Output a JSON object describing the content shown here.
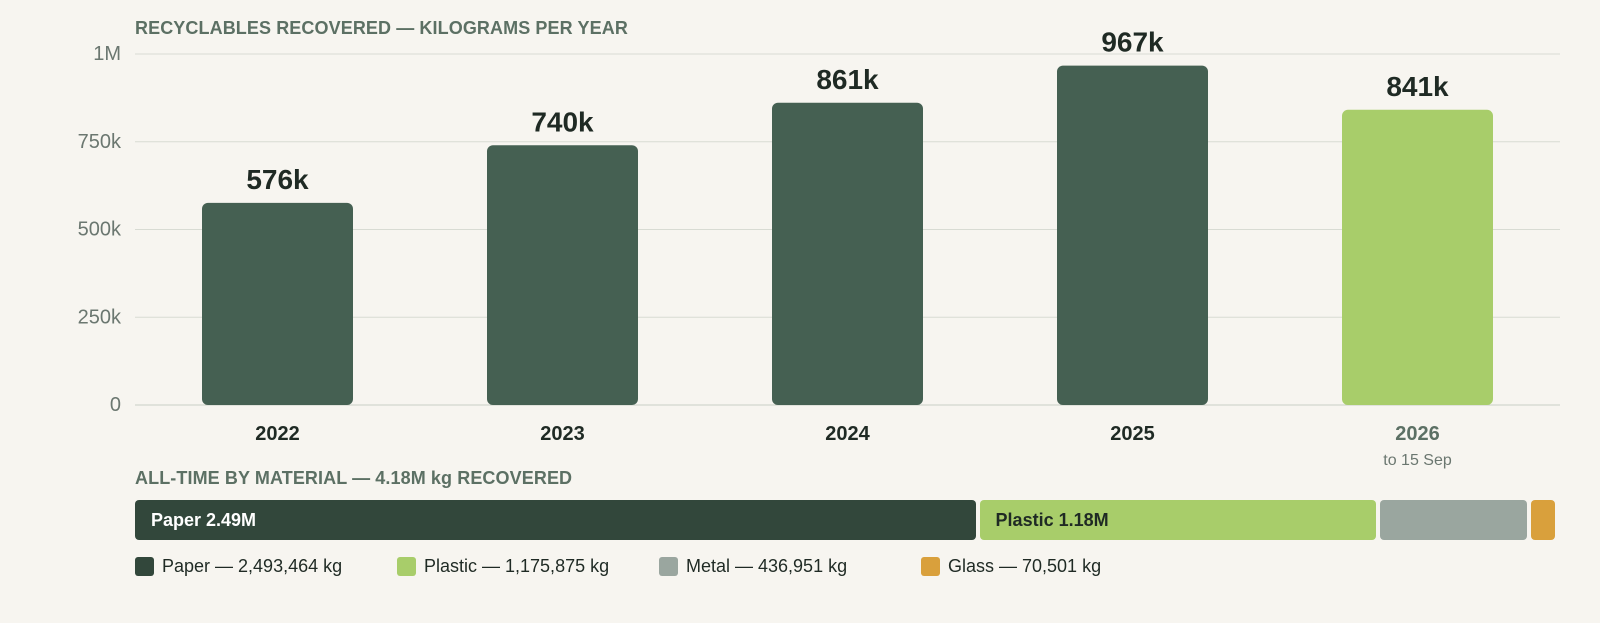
{
  "chart_data": [
    {
      "type": "bar",
      "title": "RECYCLABLES RECOVERED — KILOGRAMS PER YEAR",
      "xlabel": "",
      "ylabel": "",
      "categories": [
        "2022",
        "2023",
        "2024",
        "2025",
        "2026"
      ],
      "category_notes": [
        "",
        "",
        "",
        "",
        "to 15 Sep"
      ],
      "values": [
        576000,
        740000,
        861000,
        967000,
        841000
      ],
      "value_labels": [
        "576k",
        "740k",
        "861k",
        "967k",
        "841k"
      ],
      "ylim": [
        0,
        1000000
      ],
      "yticks": [
        0,
        250000,
        500000,
        750000,
        1000000
      ],
      "ytick_labels": [
        "0",
        "250k",
        "500k",
        "750k",
        "1M"
      ],
      "grid": true,
      "colors": {
        "bar": "#456052",
        "partial_year_bar": "#a8cd6a"
      },
      "highlight_index": 4
    },
    {
      "type": "bar",
      "title": "ALL-TIME BY MATERIAL — 4.18M kg RECOVERED",
      "stacked": true,
      "orientation": "horizontal",
      "segments": [
        {
          "name": "Paper",
          "value": 2493464,
          "bar_label": "Paper 2.49M",
          "legend": "Paper — 2,493,464 kg",
          "color": "#32473b",
          "text_color": "#ffffff"
        },
        {
          "name": "Plastic",
          "value": 1175875,
          "bar_label": "Plastic 1.18M",
          "legend": "Plastic — 1,175,875 kg",
          "color": "#a8cd6a",
          "text_color": "#1f2a24"
        },
        {
          "name": "Metal",
          "value": 436951,
          "bar_label": "",
          "legend": "Metal — 436,951 kg",
          "color": "#9aa69f",
          "text_color": "#1f2a24"
        },
        {
          "name": "Glass",
          "value": 70501,
          "bar_label": "",
          "legend": "Glass — 70,501 kg",
          "color": "#d9a03c",
          "text_color": "#1f2a24"
        }
      ],
      "legend_position": "bottom-left"
    }
  ]
}
